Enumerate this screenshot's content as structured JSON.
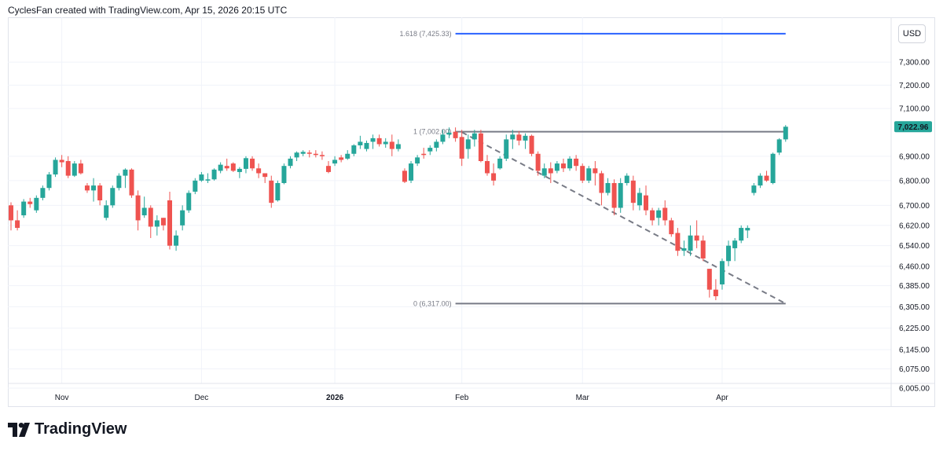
{
  "header": {
    "attribution": "CyclesFan created with TradingView.com, Apr 15, 2026 20:15 UTC"
  },
  "currency": "USD",
  "footer": {
    "brand": "TradingView"
  },
  "colors": {
    "up": "#26a69a",
    "down": "#ef5350",
    "fib_ext": "#2962ff",
    "fib": "#787b86",
    "last_price_bg": "#26a69a"
  },
  "chart_data": {
    "type": "candlestick",
    "y_scale": "log",
    "ylim": [
      5960,
      7520
    ],
    "y_ticks": [
      {
        "value": 7300,
        "label": "7,300.00"
      },
      {
        "value": 7200,
        "label": "7,200.00"
      },
      {
        "value": 7100,
        "label": "7,100.00"
      },
      {
        "value": 6900,
        "label": "6,900.00"
      },
      {
        "value": 6800,
        "label": "6,800.00"
      },
      {
        "value": 6700,
        "label": "6,700.00"
      },
      {
        "value": 6620,
        "label": "6,620.00"
      },
      {
        "value": 6540,
        "label": "6,540.00"
      },
      {
        "value": 6460,
        "label": "6,460.00"
      },
      {
        "value": 6385,
        "label": "6,385.00"
      },
      {
        "value": 6305,
        "label": "6,305.00"
      },
      {
        "value": 6225,
        "label": "6,225.00"
      },
      {
        "value": 6145,
        "label": "6,145.00"
      },
      {
        "value": 6075,
        "label": "6,075.00"
      },
      {
        "value": 6005,
        "label": "6,005.00"
      }
    ],
    "x_ticks": [
      {
        "index": 8,
        "label": "Nov",
        "bold": false
      },
      {
        "index": 30,
        "label": "Dec",
        "bold": false
      },
      {
        "index": 51,
        "label": "2026",
        "bold": true
      },
      {
        "index": 71,
        "label": "Feb",
        "bold": false
      },
      {
        "index": 90,
        "label": "Mar",
        "bold": false
      },
      {
        "index": 112,
        "label": "Apr",
        "bold": false
      }
    ],
    "last_price": {
      "value": 7022.96,
      "label": "7,022.96"
    },
    "fib_levels": [
      {
        "level": "1.618",
        "price": 7425.33,
        "label": "1.618 (7,425.33)",
        "color": "#2962ff"
      },
      {
        "level": "1",
        "price": 7002.0,
        "label": "1 (7,002.00)",
        "color": "#787b86"
      },
      {
        "level": "0",
        "price": 6317.0,
        "label": "0 (6,317.00)",
        "color": "#787b86"
      }
    ],
    "fib_range": {
      "start_index": 70,
      "end_index": 122
    },
    "trendline": {
      "start": {
        "index": 71,
        "price": 7000
      },
      "end": {
        "index": 122,
        "price": 6317
      }
    },
    "candles": [
      [
        6700,
        6712,
        6600,
        6640
      ],
      [
        6640,
        6680,
        6600,
        6610
      ],
      [
        6660,
        6725,
        6650,
        6715
      ],
      [
        6715,
        6730,
        6690,
        6705
      ],
      [
        6680,
        6740,
        6670,
        6730
      ],
      [
        6730,
        6780,
        6720,
        6770
      ],
      [
        6770,
        6835,
        6760,
        6825
      ],
      [
        6825,
        6895,
        6815,
        6885
      ],
      [
        6885,
        6905,
        6855,
        6875
      ],
      [
        6880,
        6900,
        6810,
        6820
      ],
      [
        6820,
        6880,
        6815,
        6870
      ],
      [
        6870,
        6885,
        6825,
        6830
      ],
      [
        6780,
        6790,
        6750,
        6760
      ],
      [
        6760,
        6810,
        6715,
        6780
      ],
      [
        6780,
        6790,
        6700,
        6720
      ],
      [
        6650,
        6720,
        6640,
        6700
      ],
      [
        6700,
        6780,
        6690,
        6770
      ],
      [
        6770,
        6830,
        6760,
        6820
      ],
      [
        6820,
        6850,
        6770,
        6845
      ],
      [
        6845,
        6850,
        6730,
        6740
      ],
      [
        6740,
        6760,
        6600,
        6640
      ],
      [
        6660,
        6735,
        6650,
        6690
      ],
      [
        6690,
        6700,
        6570,
        6615
      ],
      [
        6615,
        6660,
        6580,
        6640
      ],
      [
        6650,
        6650,
        6600,
        6620
      ],
      [
        6720,
        6755,
        6525,
        6540
      ],
      [
        6540,
        6600,
        6520,
        6580
      ],
      [
        6620,
        6700,
        6600,
        6680
      ],
      [
        6680,
        6760,
        6670,
        6750
      ],
      [
        6755,
        6810,
        6745,
        6800
      ],
      [
        6800,
        6835,
        6795,
        6825
      ],
      [
        6800,
        6830,
        6790,
        6805
      ],
      [
        6805,
        6850,
        6800,
        6845
      ],
      [
        6840,
        6875,
        6830,
        6865
      ],
      [
        6860,
        6890,
        6840,
        6850
      ],
      [
        6870,
        6875,
        6835,
        6840
      ],
      [
        6835,
        6855,
        6810,
        6848
      ],
      [
        6848,
        6900,
        6830,
        6892
      ],
      [
        6890,
        6900,
        6840,
        6850
      ],
      [
        6850,
        6870,
        6810,
        6830
      ],
      [
        6830,
        6830,
        6790,
        6815
      ],
      [
        6800,
        6820,
        6690,
        6710
      ],
      [
        6720,
        6800,
        6715,
        6790
      ],
      [
        6790,
        6870,
        6785,
        6860
      ],
      [
        6860,
        6900,
        6850,
        6890
      ],
      [
        6895,
        6920,
        6880,
        6915
      ],
      [
        6910,
        6925,
        6900,
        6918
      ],
      [
        6915,
        6925,
        6895,
        6910
      ],
      [
        6910,
        6925,
        6895,
        6905
      ],
      [
        6905,
        6920,
        6885,
        6900
      ],
      [
        6860,
        6880,
        6830,
        6835
      ],
      [
        6870,
        6900,
        6860,
        6885
      ],
      [
        6895,
        6905,
        6875,
        6885
      ],
      [
        6890,
        6925,
        6885,
        6910
      ],
      [
        6910,
        6950,
        6900,
        6945
      ],
      [
        6945,
        6985,
        6930,
        6960
      ],
      [
        6930,
        6965,
        6920,
        6955
      ],
      [
        6960,
        6990,
        6930,
        6975
      ],
      [
        6975,
        6990,
        6940,
        6950
      ],
      [
        6950,
        6975,
        6935,
        6960
      ],
      [
        6960,
        6990,
        6900,
        6930
      ],
      [
        6930,
        6970,
        6920,
        6950
      ],
      [
        6840,
        6850,
        6790,
        6795
      ],
      [
        6800,
        6880,
        6790,
        6870
      ],
      [
        6870,
        6905,
        6860,
        6895
      ],
      [
        6910,
        6935,
        6890,
        6905
      ],
      [
        6920,
        6945,
        6905,
        6935
      ],
      [
        6935,
        6970,
        6920,
        6960
      ],
      [
        6960,
        7010,
        6950,
        6990
      ],
      [
        6990,
        7020,
        6975,
        6998
      ],
      [
        7002,
        7020,
        6960,
        6975
      ],
      [
        6980,
        7010,
        6860,
        6890
      ],
      [
        6930,
        6990,
        6890,
        6970
      ],
      [
        6970,
        7010,
        6940,
        6995
      ],
      [
        6995,
        7010,
        6875,
        6880
      ],
      [
        6880,
        6905,
        6820,
        6830
      ],
      [
        6830,
        6870,
        6780,
        6800
      ],
      [
        6850,
        6900,
        6845,
        6890
      ],
      [
        6890,
        6990,
        6880,
        6970
      ],
      [
        6970,
        7010,
        6930,
        6990
      ],
      [
        6990,
        7005,
        6945,
        6965
      ],
      [
        6965,
        6995,
        6930,
        6985
      ],
      [
        6985,
        6990,
        6900,
        6910
      ],
      [
        6910,
        6920,
        6820,
        6840
      ],
      [
        6820,
        6870,
        6810,
        6850
      ],
      [
        6850,
        6875,
        6790,
        6830
      ],
      [
        6840,
        6880,
        6830,
        6870
      ],
      [
        6870,
        6890,
        6835,
        6850
      ],
      [
        6850,
        6900,
        6840,
        6890
      ],
      [
        6890,
        6905,
        6840,
        6860
      ],
      [
        6860,
        6870,
        6790,
        6800
      ],
      [
        6800,
        6860,
        6790,
        6850
      ],
      [
        6850,
        6880,
        6780,
        6830
      ],
      [
        6830,
        6840,
        6700,
        6750
      ],
      [
        6750,
        6810,
        6740,
        6790
      ],
      [
        6790,
        6805,
        6660,
        6690
      ],
      [
        6690,
        6810,
        6670,
        6790
      ],
      [
        6790,
        6830,
        6780,
        6820
      ],
      [
        6800,
        6820,
        6680,
        6710
      ],
      [
        6700,
        6770,
        6680,
        6750
      ],
      [
        6740,
        6780,
        6660,
        6680
      ],
      [
        6680,
        6690,
        6620,
        6640
      ],
      [
        6650,
        6690,
        6620,
        6680
      ],
      [
        6690,
        6720,
        6620,
        6640
      ],
      [
        6640,
        6650,
        6575,
        6585
      ],
      [
        6590,
        6610,
        6500,
        6520
      ],
      [
        6520,
        6560,
        6500,
        6530
      ],
      [
        6520,
        6620,
        6500,
        6580
      ],
      [
        6580,
        6640,
        6530,
        6560
      ],
      [
        6560,
        6580,
        6480,
        6490
      ],
      [
        6450,
        6450,
        6340,
        6370
      ],
      [
        6370,
        6410,
        6330,
        6345
      ],
      [
        6390,
        6490,
        6370,
        6480
      ],
      [
        6480,
        6560,
        6460,
        6540
      ],
      [
        6530,
        6570,
        6480,
        6560
      ],
      [
        6560,
        6620,
        6550,
        6610
      ],
      [
        6600,
        6620,
        6570,
        6610
      ],
      [
        6750,
        6790,
        6740,
        6780
      ],
      [
        6780,
        6830,
        6770,
        6820
      ],
      [
        6820,
        6840,
        6795,
        6800
      ],
      [
        6790,
        6915,
        6785,
        6910
      ],
      [
        6915,
        6975,
        6905,
        6970
      ],
      [
        6970,
        7030,
        6960,
        7022.96
      ]
    ]
  }
}
